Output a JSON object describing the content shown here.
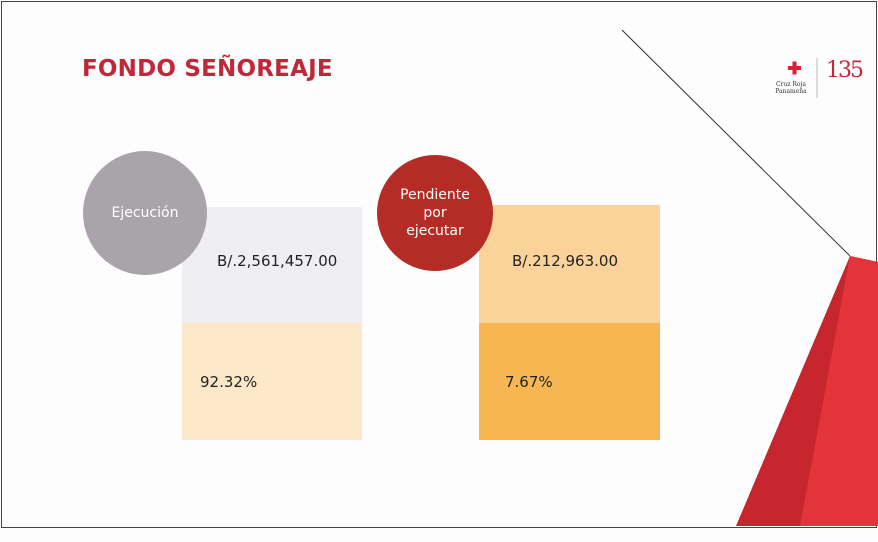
{
  "header": {
    "title": "FONDO SEÑOREAJE",
    "logo": {
      "name": "Cruz Roja Panameña",
      "years": "135"
    }
  },
  "cards": [
    {
      "label": "Ejecución",
      "amount": "B/.2,561,457.00",
      "percent": "92.32%"
    },
    {
      "label": "Pendiente por ejecutar",
      "amount": "B/.212,963.00",
      "percent": "7.67%"
    }
  ]
}
